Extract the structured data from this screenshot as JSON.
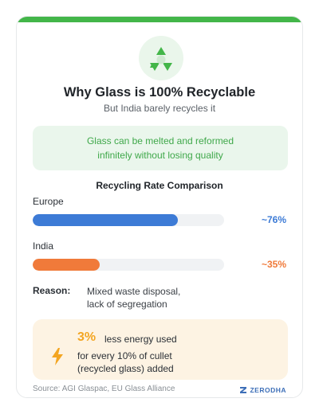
{
  "header": {
    "title": "Why Glass is 100% Recyclable",
    "subtitle": "But India barely recycles it",
    "icon": "recycle-icon",
    "accent_color": "#43b649"
  },
  "note": {
    "lines": [
      "Glass can be melted and reformed",
      "infinitely without losing quality"
    ]
  },
  "comparison": {
    "title": "Recycling Rate Comparison",
    "rows": [
      {
        "label": "Europe",
        "value_text": "~76%",
        "rate": 0.76,
        "color": "#3d7bd6"
      },
      {
        "label": "India",
        "value_text": "~35%",
        "rate": 0.35,
        "color": "#f07a3a"
      }
    ]
  },
  "reason": {
    "label": "Reason:",
    "lines": [
      "Mixed waste disposal,",
      "lack of segregation"
    ]
  },
  "energy": {
    "icon": "lightning-bolt-icon",
    "big_value": "3%",
    "headline": "less energy used",
    "lines": [
      "for every 10% of cullet",
      "(recycled glass) added"
    ],
    "color": "#f3a521"
  },
  "footer": {
    "source": "Source: AGI Glaspac, EU Glass Alliance",
    "brand": "ZERODHA"
  }
}
